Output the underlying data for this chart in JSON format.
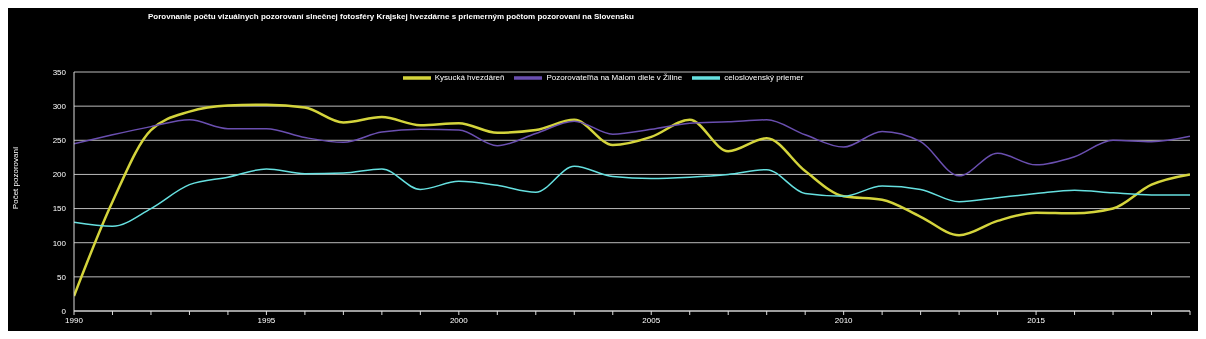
{
  "chart_data": {
    "type": "line",
    "title": "Porovnanie počtu vizuálnych pozorovaní slnečnej fotosféry Krajskej hvezdárne s priemerným počtom pozorovaní na Slovensku",
    "ylabel": "Počet pozorovaní",
    "x": [
      1990,
      1991,
      1992,
      1993,
      1994,
      1995,
      1996,
      1997,
      1998,
      1999,
      2000,
      2001,
      2002,
      2003,
      2004,
      2005,
      2006,
      2007,
      2008,
      2009,
      2010,
      2011,
      2012,
      2013,
      2014,
      2015,
      2016,
      2017,
      2018,
      2019
    ],
    "series": [
      {
        "name": "Kysucká hvezdáreň",
        "color": "#d4d43c",
        "values": [
          22,
          160,
          265,
          292,
          301,
          302,
          298,
          276,
          284,
          272,
          275,
          261,
          265,
          280,
          243,
          255,
          280,
          234,
          253,
          205,
          168,
          163,
          138,
          111,
          132,
          144,
          143,
          150,
          185,
          200
        ]
      },
      {
        "name": "celoslovenský priemer",
        "color": "#66e0e0",
        "values": [
          130,
          124,
          150,
          185,
          196,
          208,
          201,
          202,
          208,
          178,
          190,
          184,
          174,
          212,
          197,
          194,
          196,
          200,
          207,
          172,
          168,
          183,
          178,
          160,
          166,
          172,
          177,
          173,
          170,
          170
        ]
      },
      {
        "name": "Pozorovateľňa na Malom diele v Žiline",
        "color": "#6a4fb0",
        "values": [
          245,
          258,
          270,
          280,
          267,
          267,
          254,
          247,
          262,
          266,
          265,
          242,
          260,
          278,
          259,
          266,
          275,
          277,
          280,
          258,
          240,
          263,
          248,
          198,
          231,
          214,
          226,
          250,
          248,
          256
        ]
      }
    ],
    "xlim": [
      1990,
      2019
    ],
    "xticks": [
      1990,
      {
        "value": 1991,
        "label": null
      },
      {
        "value": 1992,
        "label": null
      },
      {
        "value": 1993,
        "label": null
      },
      {
        "value": 1994,
        "label": null
      },
      1995,
      {
        "value": 1996,
        "label": null
      },
      {
        "value": 1997,
        "label": null
      },
      {
        "value": 1998,
        "label": null
      },
      {
        "value": 1999,
        "label": null
      },
      2000,
      {
        "value": 2001,
        "label": null
      },
      {
        "value": 2002,
        "label": null
      },
      {
        "value": 2003,
        "label": null
      },
      {
        "value": 2004,
        "label": null
      },
      2005,
      {
        "value": 2006,
        "label": null
      },
      {
        "value": 2007,
        "label": null
      },
      {
        "value": 2008,
        "label": null
      },
      {
        "value": 2009,
        "label": null
      },
      2010,
      {
        "value": 2011,
        "label": null
      },
      {
        "value": 2012,
        "label": null
      },
      {
        "value": 2013,
        "label": null
      },
      {
        "value": 2014,
        "label": null
      },
      2015,
      {
        "value": 2016,
        "label": null
      },
      {
        "value": 2017,
        "label": null
      },
      {
        "value": 2018,
        "label": null
      },
      {
        "value": 2019,
        "label": null
      }
    ],
    "ylim": [
      0,
      350
    ],
    "yticks": [
      0,
      50,
      100,
      150,
      200,
      250,
      300,
      350
    ],
    "grid": "y",
    "legend": "top",
    "marker": "none",
    "line_style": "solid"
  }
}
